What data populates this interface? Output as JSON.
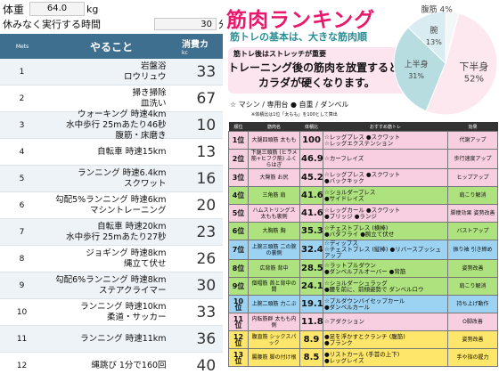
{
  "app": {
    "weight": {
      "label": "体重",
      "value": "64.0",
      "unit": "kg"
    },
    "rest": {
      "label": "休みなく実行する時間",
      "value": "30",
      "unit": "分"
    },
    "table": {
      "header": {
        "no": "Mets",
        "activity": "やること",
        "cal": "消費カ",
        "cal_sub": "kc"
      },
      "rows": [
        {
          "no": "1",
          "line1": "岩盤浴",
          "line2": "ロウリュウ",
          "cal": "33"
        },
        {
          "no": "2",
          "line1": "掃き掃除",
          "line2": "皿洗い",
          "cal": "67"
        },
        {
          "no": "3",
          "line1": "ウォーキング 時速4km",
          "line2": "水中歩行 25mあたり46秒",
          "line3": "腹筋・床磨き",
          "cal": "10"
        },
        {
          "no": "4",
          "line1": "自転車 時速15km",
          "line2": "",
          "cal": "13"
        },
        {
          "no": "5",
          "line1": "ランニング 時速6.4km",
          "line2": "スクワット",
          "cal": "16"
        },
        {
          "no": "6",
          "line1": "勾配5%ランニング 時速6km",
          "line2": "マシントレーニング",
          "cal": "20"
        },
        {
          "no": "7",
          "line1": "自転車 時速20km",
          "line2": "水中歩行 25mあたり27秒",
          "cal": "23"
        },
        {
          "no": "8",
          "line1": "ジョギング 時速8km",
          "line2": "縄立て伏せ",
          "cal": "26"
        },
        {
          "no": "9",
          "line1": "勾配6%ランニング 時速8km",
          "line2": "ステアクライマー",
          "cal": "30"
        },
        {
          "no": "10",
          "line1": "ランニング 時速10km",
          "line2": "柔道・サッカー",
          "cal": "33"
        },
        {
          "no": "11",
          "line1": "ランニング 時速11km",
          "line2": "",
          "cal": "36"
        },
        {
          "no": "12",
          "line1": "縄跳び 1分で160回",
          "line2": "",
          "cal": "40"
        }
      ]
    }
  },
  "poster": {
    "title": "筋肉ランキング",
    "subtitle": "筋トレの基本は、大きな筋肉順",
    "lead1": "筋トレ後はストレッチが重要",
    "lead2": "トレーニング後の筋肉を放置すると",
    "lead3": "カラダが硬くなります。",
    "legend": "☆ マシン / 専用台  ● 自重 / ダンベル",
    "note": "※体積比は1位「太もも」を100として算出",
    "colors": {
      "title": "#e8196c",
      "sub": "#2a8e95",
      "box": "#fde5ef"
    },
    "pie": {
      "slices": [
        {
          "name": "下半身",
          "value": 52
        },
        {
          "name": "上半身",
          "value": 31
        },
        {
          "name": "腕",
          "value": 13
        },
        {
          "name": "腹筋",
          "value": 4
        }
      ],
      "colors": [
        "#fce8ee",
        "#b8dde0",
        "#d9ecf2",
        "#f4f7f9"
      ]
    },
    "rank_header": [
      "順位",
      "筋肉名",
      "体積比",
      "おすすめ筋トレ",
      "効果"
    ],
    "ranks": [
      {
        "pos": "1位",
        "muscle": "大腿四頭筋 太もも",
        "score": "100",
        "ex1": "☆レッグプレス ●スクワット",
        "ex2": "☆レッグエクステンション",
        "effect": "代謝アップ",
        "color": "#f8cfe0"
      },
      {
        "pos": "2位",
        "muscle": "下腿三頭筋 (ヒラメ筋+ヒフク筋) ふくらはぎ",
        "score": "46.9",
        "ex1": "☆カーフレイズ",
        "ex2": "",
        "effect": "歩行速度アップ",
        "color": "#f8cfe0"
      },
      {
        "pos": "3位",
        "muscle": "大臀筋 お尻",
        "score": "45.2",
        "ex1": "☆レッグプレス ●スクワット",
        "ex2": "●バックキック",
        "effect": "ヒップアップ",
        "color": "#f8cfe0"
      },
      {
        "pos": "4位",
        "muscle": "三角筋 肩",
        "score": "41.6",
        "ex1": "☆ショルダープレス",
        "ex2": "●サイドレイズ",
        "effect": "肩こり解消",
        "color": "#aee27e"
      },
      {
        "pos": "5位",
        "muscle": "ハムストリングス 太もも裏側",
        "score": "41.6",
        "ex1": "☆レッグカール ●スクワット",
        "ex2": "●ブリッジ ●ランジ",
        "effect": "脚痩効果 姿勢改善",
        "color": "#f8cfe0"
      },
      {
        "pos": "6位",
        "muscle": "大胸筋 胸",
        "score": "35.3",
        "ex1": "☆チェストプレス (横棒)",
        "ex2": "●バタフライ ●腕立て伏せ",
        "effect": "バストアップ",
        "color": "#aee27e"
      },
      {
        "pos": "7位",
        "muscle": "上腕三頭筋 二の腕の裏側",
        "score": "32.4",
        "ex1": "☆ディップス",
        "ex2": "☆チェストプレス (縦棒) ●リバースプッシュアップ",
        "effect": "振り袖 引き締め",
        "color": "#9cd2f2"
      },
      {
        "pos": "8位",
        "muscle": "広背筋 背中",
        "score": "28.5",
        "ex1": "☆ラットプルダウン",
        "ex2": "●ダンベルプルオーバー ●背筋",
        "effect": "姿勢改善",
        "color": "#aee27e"
      },
      {
        "pos": "9位",
        "muscle": "僧帽筋 首と背中の間",
        "score": "24.1",
        "ex1": "☆ショルダーシュラッグ",
        "ex2": "●腰を前に、前傾姿勢で ダンベルロウ",
        "effect": "肩こり解消",
        "color": "#aee27e"
      },
      {
        "pos": "10位",
        "muscle": "上腕二頭筋 力こぶ",
        "score": "19.1",
        "ex1": "☆プルダウンバイセップカール",
        "ex2": "●ダンベルカール",
        "effect": "持ち上げ動作",
        "color": "#9cd2f2"
      },
      {
        "pos": "11位",
        "muscle": "内転筋群 太もも内側",
        "score": "11.8",
        "ex1": "☆アダクション",
        "ex2": "",
        "effect": "O脚改善",
        "color": "#f8cfe0"
      },
      {
        "pos": "12位",
        "muscle": "腹直筋 シックスパック",
        "score": "8.9",
        "ex1": "●足を浮かすとクランチ (腹筋)",
        "ex2": "●プランク",
        "effect": "姿勢改善",
        "color": "#fde66a"
      },
      {
        "pos": "13位",
        "muscle": "腸腰筋 脚の付け根",
        "score": "8.5",
        "ex1": "●リストカール (手首の上下)",
        "ex2": "●レッグレイズ",
        "effect": "手や指の握力",
        "color": "#fde66a"
      }
    ]
  }
}
